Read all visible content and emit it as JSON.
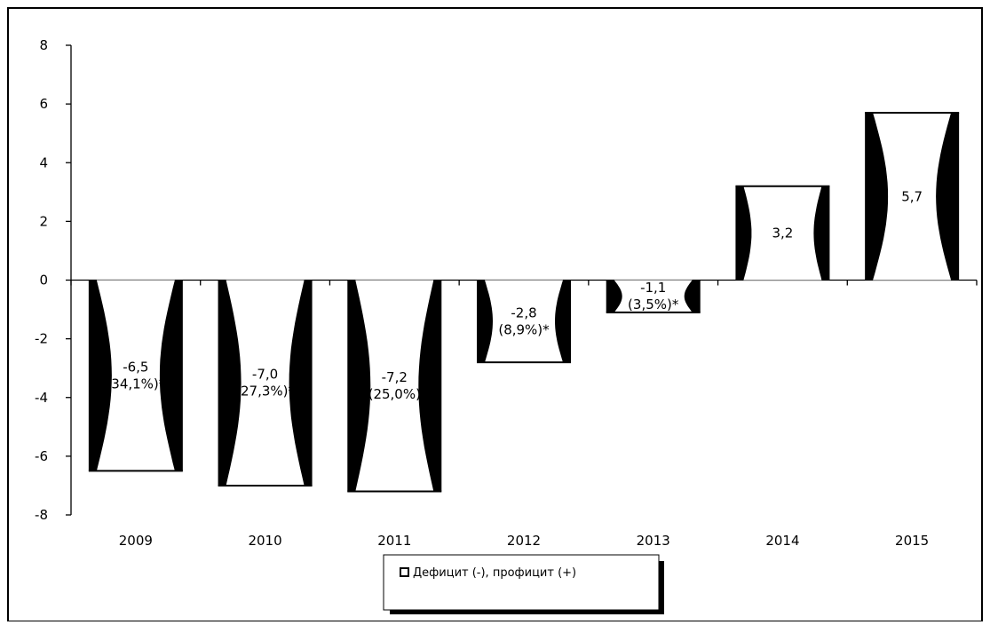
{
  "chart_data": {
    "type": "bar",
    "categories": [
      "2009",
      "2010",
      "2011",
      "2012",
      "2013",
      "2014",
      "2015"
    ],
    "series": [
      {
        "name": "Дефицит (-), профицит (+)",
        "values": [
          -6.5,
          -7.0,
          -7.2,
          -2.8,
          -1.1,
          3.2,
          5.7
        ]
      }
    ],
    "data_labels": [
      [
        "-6,5",
        "(34,1%)*"
      ],
      [
        "-7,0",
        "(27,3%)*"
      ],
      [
        "-7,2",
        "(25,0%)"
      ],
      [
        "-2,8",
        "(8,9%)*"
      ],
      [
        "-1,1",
        "(3,5%)*"
      ],
      [
        "3,2"
      ],
      [
        "5,7"
      ]
    ],
    "y_ticks": [
      8,
      6,
      4,
      2,
      0,
      -2,
      -4,
      -6,
      -8
    ],
    "ylim": [
      -8,
      8
    ],
    "grid": false,
    "legend_position": "bottom-center",
    "title": "",
    "xlabel": "",
    "ylabel": "",
    "colors": {
      "bar_fill": "#ffffff",
      "bar_edge": "#000000",
      "axis": "#000000"
    }
  }
}
